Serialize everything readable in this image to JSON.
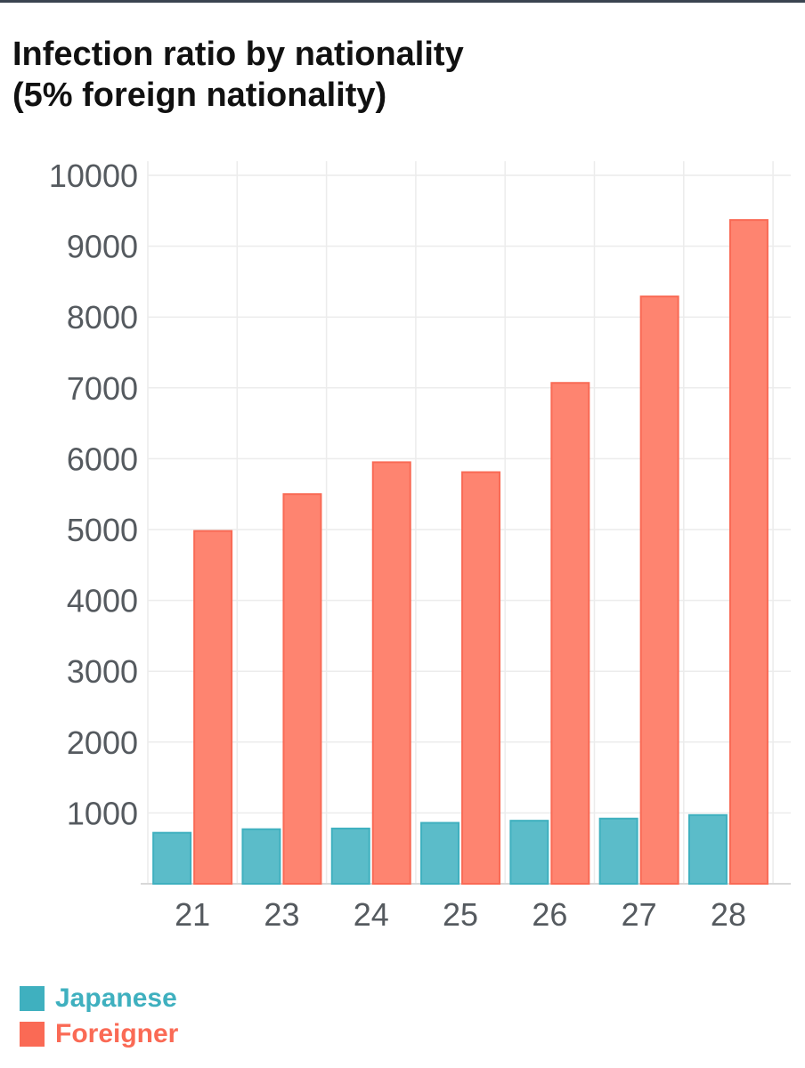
{
  "header": {
    "title_line1": "Infection ratio by nationality",
    "title_line2": "(5% foreign nationality)"
  },
  "colors": {
    "japanese": "#5bbcc9",
    "japanese_stroke": "#3fb0bf",
    "japanese_legend": "#3fb0bf",
    "foreigner": "#fe8470",
    "foreigner_stroke": "#f96a55",
    "foreigner_legend": "#fa6a55",
    "grid": "#ececec",
    "axis": "#d8d8d8"
  },
  "legend": [
    {
      "label": "Japanese",
      "color_key": "japanese_legend"
    },
    {
      "label": "Foreigner",
      "color_key": "foreigner_legend"
    }
  ],
  "chart_data": {
    "type": "bar",
    "title": "Infection ratio by nationality (5% foreign nationality)",
    "categories": [
      "21",
      "23",
      "24",
      "25",
      "26",
      "27",
      "28"
    ],
    "series": [
      {
        "name": "Japanese",
        "values": [
          720,
          770,
          780,
          860,
          890,
          920,
          970
        ]
      },
      {
        "name": "Foreigner",
        "values": [
          4980,
          5500,
          5950,
          5810,
          7070,
          8290,
          9370
        ]
      }
    ],
    "yticks": [
      "1000",
      "2000",
      "3000",
      "4000",
      "5000",
      "6000",
      "7000",
      "8000",
      "9000",
      "10000"
    ],
    "ylim": [
      0,
      10200
    ],
    "grid": true,
    "legend_position": "bottom-left"
  }
}
